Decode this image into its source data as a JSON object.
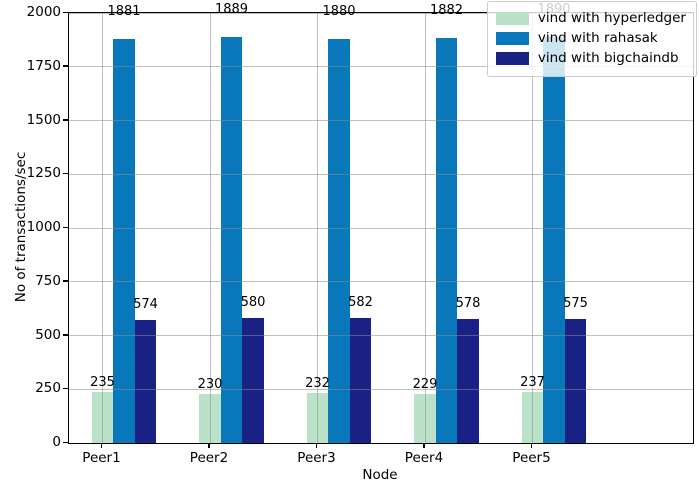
{
  "chart_data": {
    "type": "bar",
    "title": "",
    "xlabel": "Node",
    "ylabel": "No of transactions/sec",
    "categories": [
      "Peer1",
      "Peer2",
      "Peer3",
      "Peer4",
      "Peer5"
    ],
    "series": [
      {
        "name": "vind with hyperledger",
        "color": "#b9e2c8",
        "values": [
          235,
          230,
          232,
          229,
          237
        ]
      },
      {
        "name": "vind with rahasak",
        "color": "#0878bb",
        "values": [
          1881,
          1889,
          1880,
          1882,
          1890
        ]
      },
      {
        "name": "vind with bigchaindb",
        "color": "#192184",
        "values": [
          574,
          580,
          582,
          578,
          575
        ]
      }
    ],
    "ylim": [
      0,
      2000
    ],
    "yticks": [
      0,
      250,
      500,
      750,
      1000,
      1250,
      1500,
      1750,
      2000
    ],
    "grid": true,
    "legend_position": "upper right",
    "bar_value_labels": true
  },
  "colors": {
    "grid": "rgba(140,140,140,0.55)",
    "spine": "#000000",
    "legend_border": "#cccccc",
    "legend_background": "rgba(255,255,255,0.8)"
  }
}
